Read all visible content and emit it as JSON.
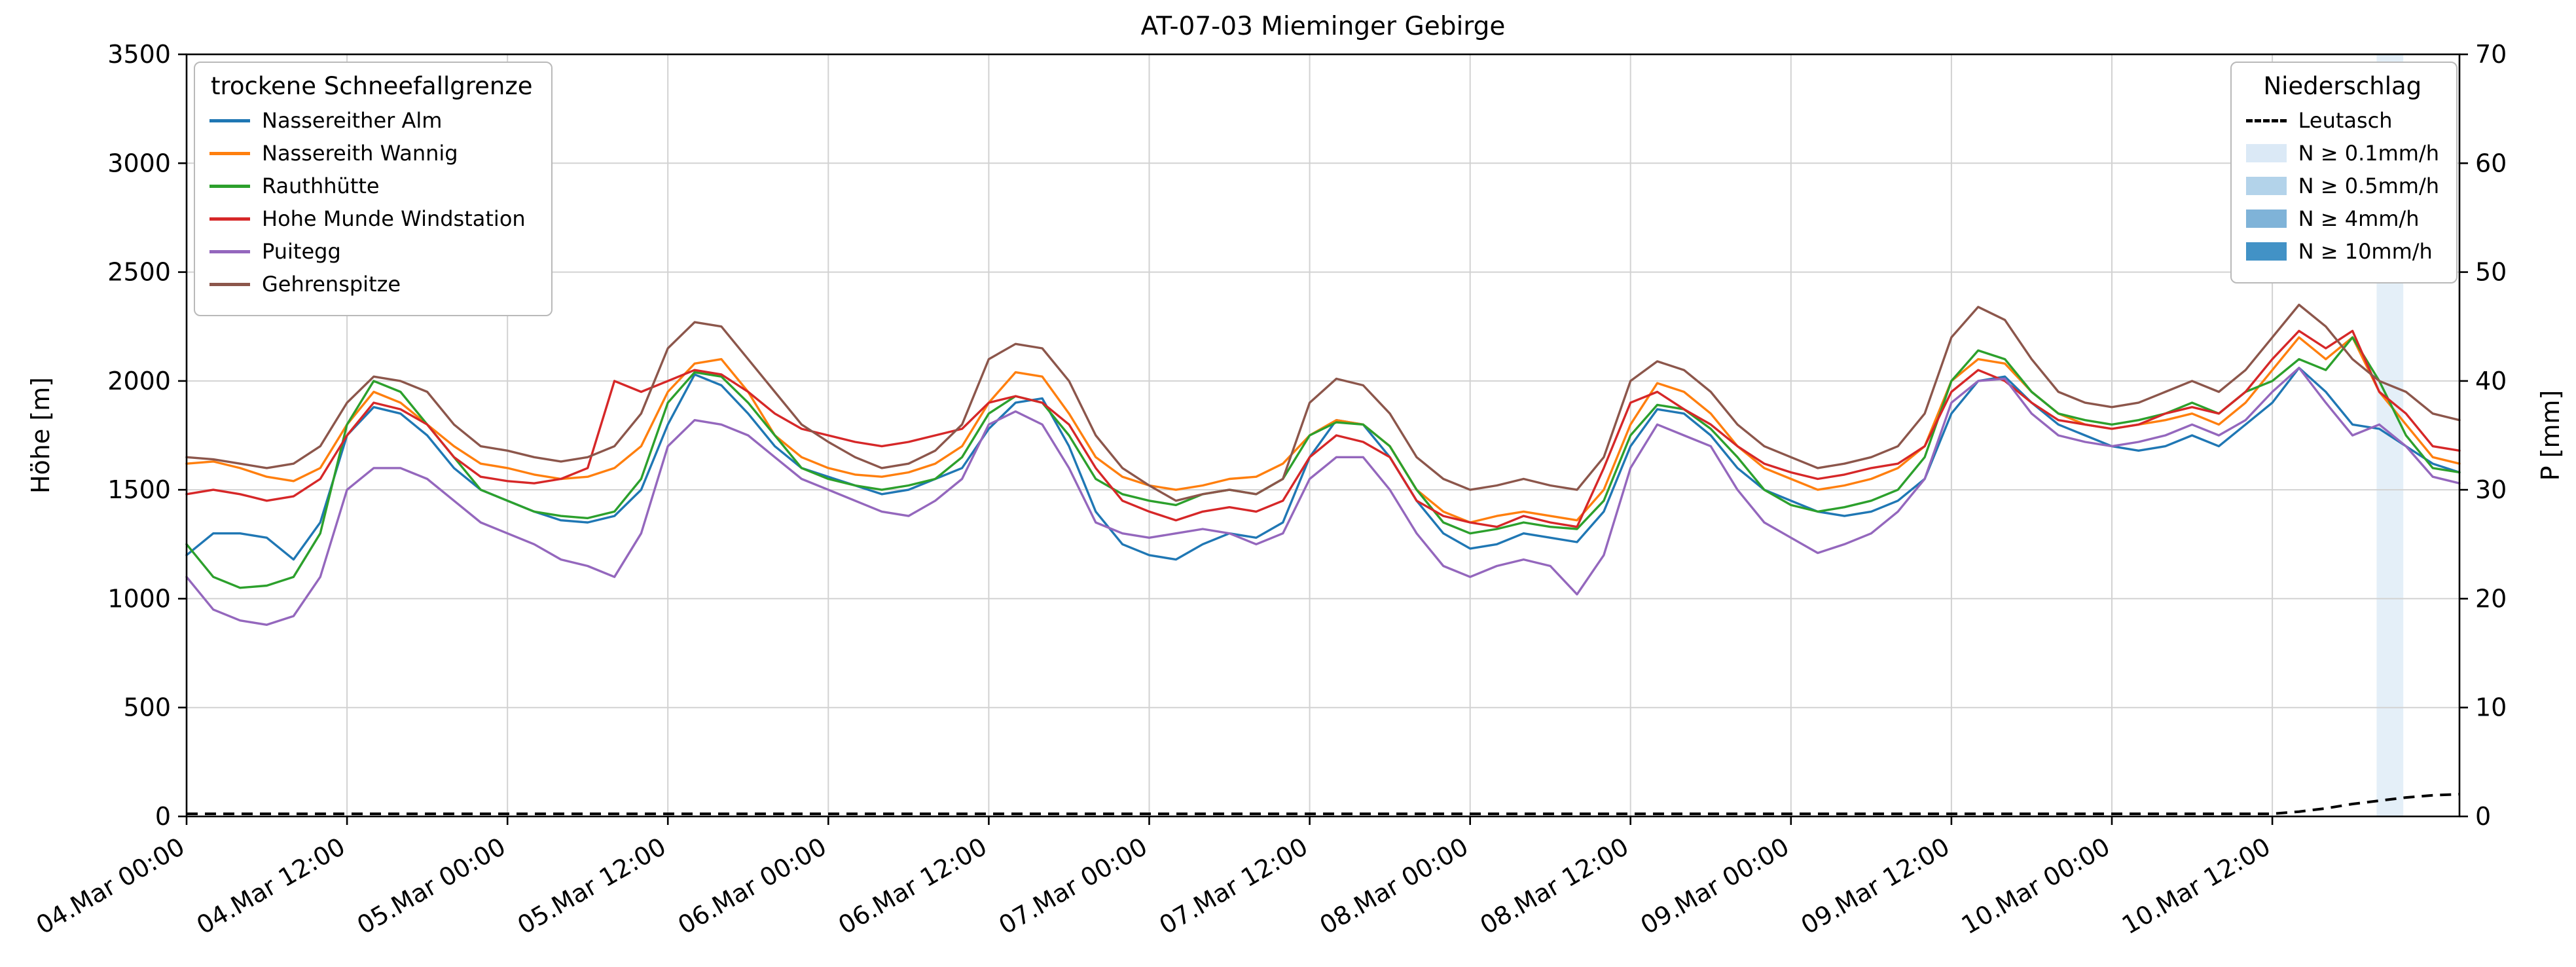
{
  "title": "AT-07-03 Mieminger Gebirge",
  "axes": {
    "y_left_label": "Höhe [m]",
    "y_right_label": "P [mm]",
    "y_left_ticks": [
      0,
      500,
      1000,
      1500,
      2000,
      2500,
      3000,
      3500
    ],
    "y_right_ticks": [
      0,
      10,
      20,
      30,
      40,
      50,
      60,
      70
    ],
    "x_ticks": {
      "hours": [
        0,
        12,
        24,
        36,
        48,
        60,
        72,
        84,
        96,
        108,
        120,
        132,
        144,
        156
      ],
      "labels": [
        "04.Mar 00:00",
        "04.Mar 12:00",
        "05.Mar 00:00",
        "05.Mar 12:00",
        "06.Mar 00:00",
        "06.Mar 12:00",
        "07.Mar 00:00",
        "07.Mar 12:00",
        "08.Mar 00:00",
        "08.Mar 12:00",
        "09.Mar 00:00",
        "09.Mar 12:00",
        "10.Mar 00:00",
        "10.Mar 12:00"
      ]
    },
    "grid": true
  },
  "legend_snow": {
    "title": "trockene Schneefallgrenze",
    "items": [
      {
        "label": "Nassereither Alm",
        "color": "#1f77b4"
      },
      {
        "label": "Nassereith Wannig",
        "color": "#ff7f0e"
      },
      {
        "label": "Rauthhütte",
        "color": "#2ca02c"
      },
      {
        "label": "Hohe Munde Windstation",
        "color": "#d62728"
      },
      {
        "label": "Puitegg",
        "color": "#9467bd"
      },
      {
        "label": "Gehrenspitze",
        "color": "#8c564b"
      }
    ]
  },
  "legend_precip": {
    "title": "Niederschlag",
    "line_item": {
      "label": "Leutasch",
      "color": "#000000",
      "style": "dashed"
    },
    "patch_items": [
      {
        "label": "N ≥ 0.1mm/h",
        "color": "#dbe9f6"
      },
      {
        "label": "N ≥ 0.5mm/h",
        "color": "#b3d3ea"
      },
      {
        "label": "N ≥ 4mm/h",
        "color": "#7fb3d8"
      },
      {
        "label": "N ≥ 10mm/h",
        "color": "#4292c6"
      }
    ]
  },
  "chart_data": {
    "type": "line",
    "title": "AT-07-03 Mieminger Gebirge",
    "xlabel": "",
    "ylabel_left": "Höhe [m]",
    "ylabel_right": "P [mm]",
    "x_unit": "hours since 04 Mar 00:00",
    "x_range": [
      0,
      170
    ],
    "y_left_range": [
      0,
      3500
    ],
    "y_right_range": [
      0,
      70
    ],
    "x": [
      0,
      2,
      4,
      6,
      8,
      10,
      12,
      14,
      16,
      18,
      20,
      22,
      24,
      26,
      28,
      30,
      32,
      34,
      36,
      38,
      40,
      42,
      44,
      46,
      48,
      50,
      52,
      54,
      56,
      58,
      60,
      62,
      64,
      66,
      68,
      70,
      72,
      74,
      76,
      78,
      80,
      82,
      84,
      86,
      88,
      90,
      92,
      94,
      96,
      98,
      100,
      102,
      104,
      106,
      108,
      110,
      112,
      114,
      116,
      118,
      120,
      122,
      124,
      126,
      128,
      130,
      132,
      134,
      136,
      138,
      140,
      142,
      144,
      146,
      148,
      150,
      152,
      154,
      156,
      158,
      160,
      162,
      164,
      166,
      168,
      170
    ],
    "series": [
      {
        "name": "Nassereither Alm",
        "color": "#1f77b4",
        "values": [
          1200,
          1300,
          1300,
          1280,
          1180,
          1350,
          1750,
          1880,
          1850,
          1750,
          1600,
          1500,
          1450,
          1400,
          1360,
          1350,
          1380,
          1500,
          1800,
          2030,
          1980,
          1850,
          1700,
          1600,
          1560,
          1520,
          1480,
          1500,
          1550,
          1600,
          1780,
          1900,
          1920,
          1700,
          1400,
          1250,
          1200,
          1180,
          1250,
          1300,
          1280,
          1350,
          1650,
          1820,
          1800,
          1650,
          1450,
          1300,
          1230,
          1250,
          1300,
          1280,
          1260,
          1400,
          1700,
          1870,
          1850,
          1750,
          1600,
          1500,
          1450,
          1400,
          1380,
          1400,
          1450,
          1550,
          1850,
          2000,
          2020,
          1900,
          1800,
          1750,
          1700,
          1680,
          1700,
          1750,
          1700,
          1800,
          1900,
          2060,
          1950,
          1800,
          1780,
          1700,
          1620,
          1580
        ]
      },
      {
        "name": "Nassereith Wannig",
        "color": "#ff7f0e",
        "values": [
          1620,
          1630,
          1600,
          1560,
          1540,
          1600,
          1800,
          1950,
          1900,
          1800,
          1700,
          1620,
          1600,
          1570,
          1550,
          1560,
          1600,
          1700,
          1950,
          2080,
          2100,
          1950,
          1750,
          1650,
          1600,
          1570,
          1560,
          1580,
          1620,
          1700,
          1900,
          2040,
          2020,
          1850,
          1650,
          1560,
          1520,
          1500,
          1520,
          1550,
          1560,
          1620,
          1750,
          1820,
          1800,
          1700,
          1500,
          1400,
          1350,
          1380,
          1400,
          1380,
          1360,
          1500,
          1800,
          1990,
          1950,
          1850,
          1700,
          1600,
          1550,
          1500,
          1520,
          1550,
          1600,
          1700,
          2000,
          2100,
          2080,
          1950,
          1850,
          1800,
          1780,
          1800,
          1820,
          1850,
          1800,
          1900,
          2050,
          2200,
          2100,
          2200,
          1950,
          1800,
          1650,
          1620
        ]
      },
      {
        "name": "Rauthhütte",
        "color": "#2ca02c",
        "values": [
          1250,
          1100,
          1050,
          1060,
          1100,
          1300,
          1800,
          2000,
          1950,
          1800,
          1650,
          1500,
          1450,
          1400,
          1380,
          1370,
          1400,
          1550,
          1900,
          2040,
          2020,
          1900,
          1750,
          1600,
          1550,
          1520,
          1500,
          1520,
          1550,
          1650,
          1850,
          1930,
          1900,
          1750,
          1550,
          1480,
          1450,
          1430,
          1480,
          1500,
          1480,
          1550,
          1750,
          1810,
          1800,
          1700,
          1500,
          1350,
          1300,
          1320,
          1350,
          1330,
          1320,
          1450,
          1750,
          1890,
          1870,
          1780,
          1650,
          1500,
          1430,
          1400,
          1420,
          1450,
          1500,
          1650,
          2000,
          2140,
          2100,
          1950,
          1850,
          1820,
          1800,
          1820,
          1850,
          1900,
          1850,
          1950,
          2000,
          2100,
          2050,
          2200,
          2000,
          1750,
          1600,
          1580
        ]
      },
      {
        "name": "Hohe Munde Windstation",
        "color": "#d62728",
        "values": [
          1480,
          1500,
          1480,
          1450,
          1470,
          1550,
          1750,
          1900,
          1870,
          1800,
          1650,
          1560,
          1540,
          1530,
          1550,
          1600,
          2000,
          1950,
          2000,
          2050,
          2030,
          1950,
          1850,
          1780,
          1750,
          1720,
          1700,
          1720,
          1750,
          1780,
          1900,
          1930,
          1900,
          1800,
          1600,
          1450,
          1400,
          1360,
          1400,
          1420,
          1400,
          1450,
          1650,
          1750,
          1720,
          1650,
          1450,
          1380,
          1350,
          1330,
          1380,
          1350,
          1330,
          1600,
          1900,
          1950,
          1870,
          1800,
          1700,
          1620,
          1580,
          1550,
          1570,
          1600,
          1620,
          1700,
          1950,
          2050,
          2000,
          1900,
          1820,
          1800,
          1780,
          1800,
          1850,
          1880,
          1850,
          1950,
          2100,
          2230,
          2150,
          2230,
          1950,
          1850,
          1700,
          1680
        ]
      },
      {
        "name": "Puitegg",
        "color": "#9467bd",
        "values": [
          1100,
          950,
          900,
          880,
          920,
          1100,
          1500,
          1600,
          1600,
          1550,
          1450,
          1350,
          1300,
          1250,
          1180,
          1150,
          1100,
          1300,
          1700,
          1820,
          1800,
          1750,
          1650,
          1550,
          1500,
          1450,
          1400,
          1380,
          1450,
          1550,
          1800,
          1860,
          1800,
          1600,
          1350,
          1300,
          1280,
          1300,
          1320,
          1300,
          1250,
          1300,
          1550,
          1650,
          1650,
          1500,
          1300,
          1150,
          1100,
          1150,
          1180,
          1150,
          1020,
          1200,
          1600,
          1800,
          1750,
          1700,
          1500,
          1350,
          1280,
          1210,
          1250,
          1300,
          1400,
          1550,
          1900,
          2000,
          2010,
          1850,
          1750,
          1720,
          1700,
          1720,
          1750,
          1800,
          1750,
          1820,
          1950,
          2060,
          1900,
          1750,
          1800,
          1700,
          1560,
          1530
        ]
      },
      {
        "name": "Gehrenspitze",
        "color": "#8c564b",
        "values": [
          1650,
          1640,
          1620,
          1600,
          1620,
          1700,
          1900,
          2020,
          2000,
          1950,
          1800,
          1700,
          1680,
          1650,
          1630,
          1650,
          1700,
          1850,
          2150,
          2270,
          2250,
          2100,
          1950,
          1800,
          1720,
          1650,
          1600,
          1620,
          1680,
          1800,
          2100,
          2170,
          2150,
          2000,
          1750,
          1600,
          1520,
          1450,
          1480,
          1500,
          1480,
          1550,
          1900,
          2010,
          1980,
          1850,
          1650,
          1550,
          1500,
          1520,
          1550,
          1520,
          1500,
          1650,
          2000,
          2090,
          2050,
          1950,
          1800,
          1700,
          1650,
          1600,
          1620,
          1650,
          1700,
          1850,
          2200,
          2340,
          2280,
          2100,
          1950,
          1900,
          1880,
          1900,
          1950,
          2000,
          1950,
          2050,
          2200,
          2350,
          2250,
          2100,
          2000,
          1950,
          1850,
          1820
        ]
      }
    ],
    "precip_bands": [
      {
        "start": 163.8,
        "end": 165.8,
        "level": "N ≥ 0.1mm/h",
        "color": "#dbe9f6"
      }
    ],
    "leutasch": {
      "name": "Leutasch",
      "axis": "right",
      "style": "dashed",
      "color": "#000000",
      "x": [
        0,
        156,
        158,
        160,
        162,
        164,
        166,
        168,
        170
      ],
      "y": [
        0,
        0,
        0.2,
        0.5,
        0.9,
        1.2,
        1.5,
        1.7,
        1.8
      ]
    }
  }
}
